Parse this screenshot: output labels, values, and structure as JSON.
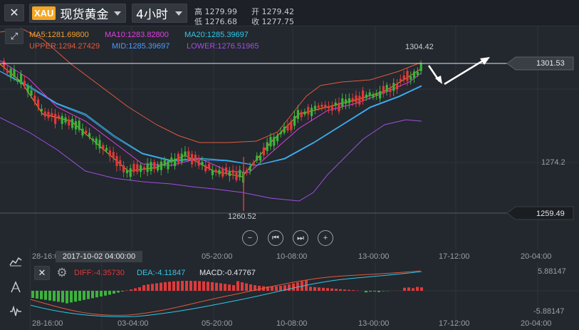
{
  "toolbar": {
    "close_label": "✕",
    "symbol_badge": "XAU",
    "symbol_name": "现货黄金",
    "period": "4小时",
    "quotes": [
      {
        "label": "高",
        "value": "1279.99"
      },
      {
        "label": "开",
        "value": "1279.42"
      },
      {
        "label": "低",
        "value": "1276.68"
      },
      {
        "label": "收",
        "value": "1277.75"
      }
    ]
  },
  "indicators": {
    "ma5": "MA5:1281.69800",
    "ma10": "MA10:1283.82800",
    "ma20": "MA20:1285.39697",
    "upper": "UPPER:1294.27429",
    "mid": "MID:1285.39697",
    "lower": "LOWER:1276.51965"
  },
  "colors": {
    "up": "#e03a3a",
    "down": "#3cb43c",
    "ma5": "#f0a030",
    "ma10": "#e040e0",
    "ma20": "#30c8e6",
    "upper": "#e05a3a",
    "mid": "#4a9cff",
    "lower": "#a050e0",
    "background": "#23272e"
  },
  "price_labels": {
    "high": "1304.42",
    "low": "1260.52",
    "right_1": "1301.53",
    "right_2": "1274.2",
    "right_3": "1259.49"
  },
  "nav_controls": {
    "zoom_out": "−",
    "first": "⏮",
    "last": "⏭",
    "zoom_in": "+"
  },
  "x_axis": [
    "28-16:00",
    "03-04:00",
    "05-20:00",
    "10-08:00",
    "13-00:00",
    "17-12:00",
    "20-04:00"
  ],
  "date_tooltip": "2017-10-02 04:00:00",
  "macd": {
    "diff": "DIFF:-4.35730",
    "dea": "DEA:-4.11847",
    "macd": "MACD:-0.47767",
    "top_value": "5.88147",
    "bottom_value": "-5.88147"
  },
  "sidebar": {
    "icons": [
      "chart-icon",
      "drawing-icon",
      "indicator-icon"
    ]
  }
}
